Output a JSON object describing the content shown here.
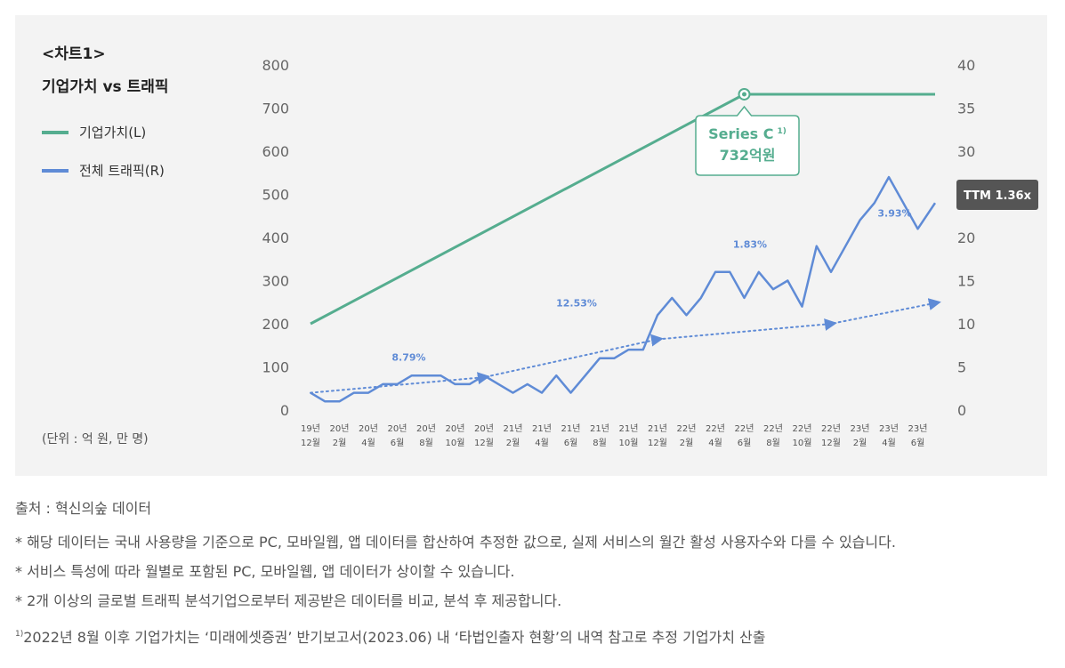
{
  "header": {
    "chart_number": "<차트1>",
    "title": "기업가치 vs 트래픽"
  },
  "legend": [
    {
      "label": "기업가치(L)",
      "color": "#55ad8f"
    },
    {
      "label": "전체 트래픽(R)",
      "color": "#5f8bd6"
    }
  ],
  "unit_note": "(단위 : 억 원, 만 명)",
  "annotation": {
    "line1": "Series C",
    "superscript": "1)",
    "line2": "732억원",
    "anchor_category_index": 15,
    "anchor_value": 732
  },
  "ttm_badge": "TTM 1.36x",
  "growth_labels": [
    {
      "text": "8.79%",
      "category_index": 3.4,
      "value_right": 5.7
    },
    {
      "text": "12.53%",
      "category_index": 9.2,
      "value_right": 12.0
    },
    {
      "text": "1.83%",
      "category_index": 15.2,
      "value_right": 18.8
    },
    {
      "text": "3.93%",
      "category_index": 20.2,
      "value_right": 22.4
    }
  ],
  "chart_data": {
    "type": "line",
    "title": "기업가치 vs 트래픽",
    "x_ticks": [
      {
        "year": "19년",
        "month": "12월"
      },
      {
        "year": "20년",
        "month": "2월"
      },
      {
        "year": "20년",
        "month": "4월"
      },
      {
        "year": "20년",
        "month": "6월"
      },
      {
        "year": "20년",
        "month": "8월"
      },
      {
        "year": "20년",
        "month": "10월"
      },
      {
        "year": "20년",
        "month": "12월"
      },
      {
        "year": "21년",
        "month": "2월"
      },
      {
        "year": "21년",
        "month": "4월"
      },
      {
        "year": "21년",
        "month": "6월"
      },
      {
        "year": "21년",
        "month": "8월"
      },
      {
        "year": "21년",
        "month": "10월"
      },
      {
        "year": "21년",
        "month": "12월"
      },
      {
        "year": "22년",
        "month": "2월"
      },
      {
        "year": "22년",
        "month": "4월"
      },
      {
        "year": "22년",
        "month": "6월"
      },
      {
        "year": "22년",
        "month": "8월"
      },
      {
        "year": "22년",
        "month": "10월"
      },
      {
        "year": "22년",
        "month": "12월"
      },
      {
        "year": "23년",
        "month": "2월"
      },
      {
        "year": "23년",
        "month": "4월"
      },
      {
        "year": "23년",
        "month": "6월"
      }
    ],
    "left_axis": {
      "ticks": [
        "0",
        "100",
        "200",
        "300",
        "400",
        "500",
        "600",
        "700",
        "800"
      ],
      "range": [
        0,
        800
      ]
    },
    "right_axis": {
      "ticks": [
        "0",
        "5",
        "10",
        "15",
        "20",
        "25",
        "30",
        "35",
        "40"
      ],
      "range": [
        0,
        40
      ]
    },
    "series": [
      {
        "name": "기업가치(L)",
        "axis": "left",
        "color": "#55ad8f",
        "points": [
          [
            0,
            200
          ],
          [
            15,
            732
          ],
          [
            21.6,
            732
          ]
        ]
      },
      {
        "name": "전체 트래픽(R)",
        "axis": "right",
        "color": "#5f8bd6",
        "points": [
          [
            0,
            2
          ],
          [
            0.5,
            1
          ],
          [
            1,
            1
          ],
          [
            1.5,
            2
          ],
          [
            2,
            2
          ],
          [
            2.5,
            3
          ],
          [
            3,
            3
          ],
          [
            3.5,
            4
          ],
          [
            4,
            4
          ],
          [
            4.5,
            4
          ],
          [
            5,
            3
          ],
          [
            5.5,
            3
          ],
          [
            6,
            4
          ],
          [
            6.5,
            3
          ],
          [
            7,
            2
          ],
          [
            7.5,
            3
          ],
          [
            8,
            2
          ],
          [
            8.5,
            4
          ],
          [
            9,
            2
          ],
          [
            9.5,
            4
          ],
          [
            10,
            6
          ],
          [
            10.5,
            6
          ],
          [
            11,
            7
          ],
          [
            11.5,
            7
          ],
          [
            12,
            11
          ],
          [
            12.5,
            13
          ],
          [
            13,
            11
          ],
          [
            13.5,
            13
          ],
          [
            14,
            16
          ],
          [
            14.5,
            16
          ],
          [
            15,
            13
          ],
          [
            15.5,
            16
          ],
          [
            16,
            14
          ],
          [
            16.5,
            15
          ],
          [
            17,
            12
          ],
          [
            17.5,
            19
          ],
          [
            18,
            16
          ],
          [
            18.5,
            19
          ],
          [
            19,
            22
          ],
          [
            19.5,
            24
          ],
          [
            20,
            27
          ],
          [
            20.5,
            24
          ],
          [
            21,
            21
          ],
          [
            21.6,
            24
          ]
        ]
      },
      {
        "name": "트래픽 추세",
        "axis": "right",
        "color": "#5f8bd6",
        "style": "dotted",
        "points": [
          [
            0,
            2
          ],
          [
            6,
            3.8
          ],
          [
            12,
            8.2
          ],
          [
            18,
            10
          ],
          [
            21.6,
            12.4
          ]
        ]
      }
    ]
  },
  "footer": {
    "source": "출처 : 혁신의숲 데이터",
    "notes": [
      "* 해당 데이터는 국내 사용량을 기준으로 PC, 모바일웹, 앱 데이터를 합산하여 추정한 값으로, 실제 서비스의 월간 활성 사용자수와 다를 수 있습니다.",
      "* 서비스 특성에 따라 월별로 포함된 PC, 모바일웹, 앱 데이터가 상이할 수 있습니다.",
      "* 2개 이상의 글로벌 트래픽 분석기업으로부터 제공받은 데이터를 비교, 분석 후 제공합니다."
    ],
    "footnote_mark": "1)",
    "footnote": "2022년 8월 이후 기업가치는 ‘미래에셋증권’ 반기보고서(2023.06) 내 ‘타법인출자 현황’의 내역 참고로 추정 기업가치 산출"
  }
}
